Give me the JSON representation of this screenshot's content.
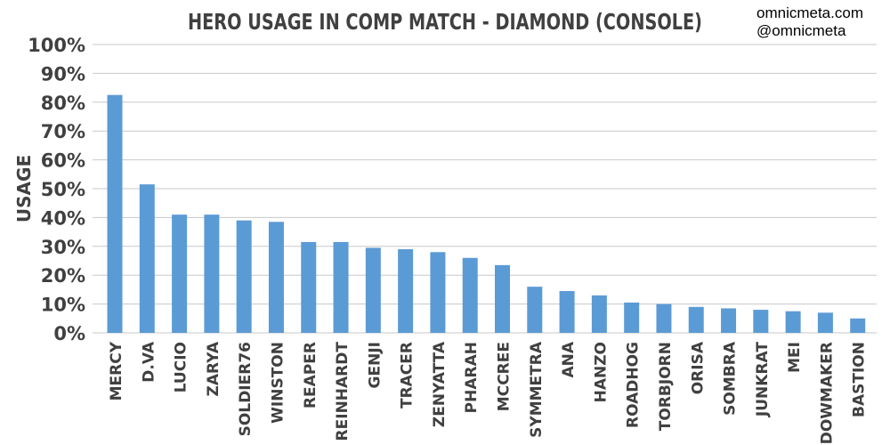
{
  "chart_data": {
    "type": "bar",
    "title": "HERO USAGE IN COMP MATCH - DIAMOND (CONSOLE)",
    "xlabel": "",
    "ylabel": "USAGE",
    "ylim": [
      0,
      100
    ],
    "yticks": [
      "0%",
      "10%",
      "20%",
      "30%",
      "40%",
      "50%",
      "60%",
      "70%",
      "80%",
      "90%",
      "100%"
    ],
    "grid": true,
    "categories": [
      "MERCY",
      "D.VA",
      "LUCIO",
      "ZARYA",
      "SOLDIER76",
      "WINSTON",
      "REAPER",
      "REINHARDT",
      "GENJI",
      "TRACER",
      "ZENYATTA",
      "PHARAH",
      "MCCREE",
      "SYMMETRA",
      "ANA",
      "HANZO",
      "ROADHOG",
      "TORBJORN",
      "ORISA",
      "SOMBRA",
      "JUNKRAT",
      "MEI",
      "WIDOWMAKER",
      "BASTION"
    ],
    "values": [
      82.5,
      51.5,
      41,
      41,
      39,
      38.5,
      31.5,
      31.5,
      29.5,
      29,
      28,
      26,
      23.5,
      16,
      14.5,
      13,
      10.5,
      10,
      9,
      8.5,
      8,
      7.5,
      7,
      5
    ],
    "bar_color": "#5b9bd5"
  },
  "watermark": {
    "site": "omnicmeta.com",
    "handle": "@omnicmeta"
  }
}
